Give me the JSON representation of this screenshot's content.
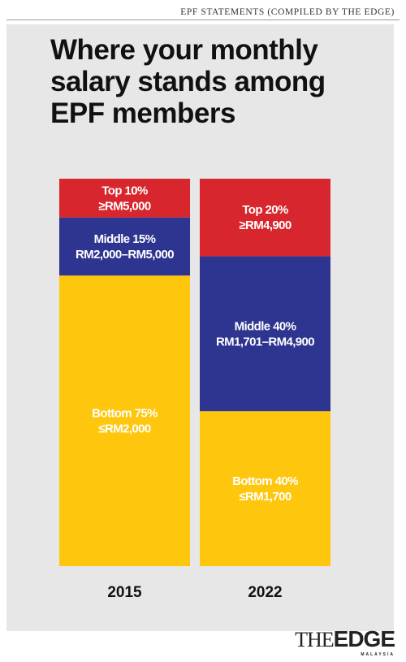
{
  "source": "EPF STATEMENTS (COMPILED BY THE EDGE)",
  "title_lines": [
    "Where your monthly",
    "salary stands among",
    "EPF members"
  ],
  "logo": {
    "text_light": "THE",
    "text_bold": "EDGE",
    "sub": "MALAYSIA"
  },
  "colors": {
    "top": "#d7262d",
    "middle": "#2e3590",
    "bottom": "#fec60d",
    "panel": "#e7e7e7"
  },
  "chart_data": {
    "type": "stacked-bar",
    "title": "Where your monthly salary stands among EPF members",
    "categories": [
      "2015",
      "2022"
    ],
    "ylim": [
      0,
      100
    ],
    "series": [
      {
        "name": "Bottom",
        "color": "#fec60d",
        "values": [
          75,
          40
        ],
        "labels": [
          [
            "Bottom 75%",
            "≤RM2,000"
          ],
          [
            "Bottom 40%",
            "≤RM1,700"
          ]
        ]
      },
      {
        "name": "Middle",
        "color": "#2e3590",
        "values": [
          15,
          40
        ],
        "labels": [
          [
            "Middle 15%",
            "RM2,000–RM5,000"
          ],
          [
            "Middle 40%",
            "RM1,701–RM4,900"
          ]
        ]
      },
      {
        "name": "Top",
        "color": "#d7262d",
        "values": [
          10,
          20
        ],
        "labels": [
          [
            "Top 10%",
            "≥RM5,000"
          ],
          [
            "Top 20%",
            "≥RM4,900"
          ]
        ]
      }
    ]
  }
}
